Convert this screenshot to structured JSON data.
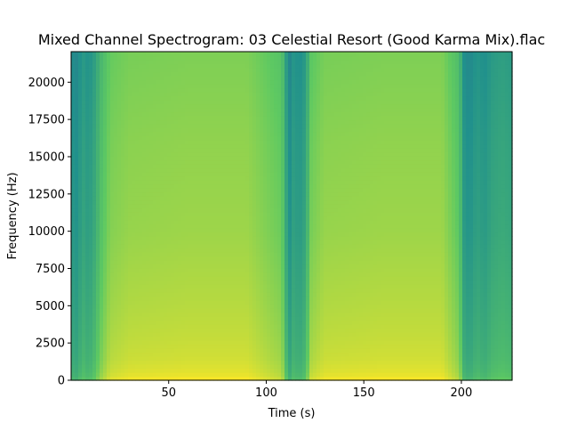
{
  "chart_data": {
    "type": "heatmap",
    "title": "Mixed Channel Spectrogram: 03 Celestial Resort (Good Karma Mix).flac",
    "xlabel": "Time (s)",
    "ylabel": "Frequency (Hz)",
    "xlim": [
      0,
      226
    ],
    "ylim": [
      0,
      22050
    ],
    "x_ticks": [
      50,
      100,
      150,
      200
    ],
    "y_ticks": [
      0,
      2500,
      5000,
      7500,
      10000,
      12500,
      15000,
      17500,
      20000
    ],
    "colormap": "viridis",
    "grid": false,
    "energy_by_time": {
      "note": "",
      "time_s": [
        0,
        3,
        6,
        9,
        12,
        15,
        20,
        30,
        60,
        90,
        108,
        110,
        112,
        114,
        117,
        120,
        123,
        130,
        160,
        190,
        199,
        201,
        204,
        208,
        212,
        216,
        221,
        226
      ],
      "level": [
        0.55,
        0.52,
        0.6,
        0.56,
        0.62,
        0.72,
        0.82,
        0.85,
        0.86,
        0.86,
        0.78,
        0.62,
        0.52,
        0.58,
        0.55,
        0.6,
        0.8,
        0.85,
        0.86,
        0.86,
        0.75,
        0.56,
        0.52,
        0.58,
        0.55,
        0.6,
        0.62,
        0.6
      ]
    },
    "energy_by_frequency": {
      "freq_hz": [
        0,
        500,
        1500,
        3000,
        5000,
        7500,
        10000,
        13000,
        16000,
        20000,
        22050
      ],
      "offset": [
        0.14,
        0.1,
        0.07,
        0.05,
        0.03,
        0.01,
        -0.01,
        -0.02,
        -0.03,
        -0.05,
        -0.06
      ]
    }
  }
}
